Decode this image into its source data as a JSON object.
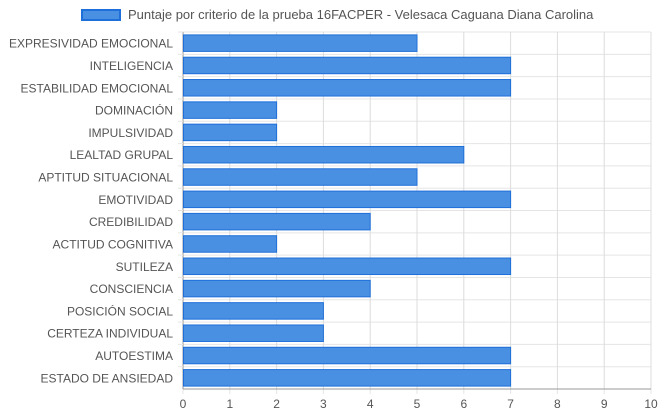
{
  "chart_data": {
    "type": "bar",
    "orientation": "horizontal",
    "categories": [
      "EXPRESIVIDAD EMOCIONAL",
      "INTELIGENCIA",
      "ESTABILIDAD EMOCIONAL",
      "DOMINACIÓN",
      "IMPULSIVIDAD",
      "LEALTAD GRUPAL",
      "APTITUD SITUACIONAL",
      "EMOTIVIDAD",
      "CREDIBILIDAD",
      "ACTITUD COGNITIVA",
      "SUTILEZA",
      "CONSCIENCIA",
      "POSICIÓN SOCIAL",
      "CERTEZA INDIVIDUAL",
      "AUTOESTIMA",
      "ESTADO DE ANSIEDAD"
    ],
    "series": [
      {
        "name": "Puntaje por criterio de la prueba 16FACPER - Velesaca Caguana Diana Carolina",
        "values": [
          5,
          7,
          7,
          2,
          2,
          6,
          5,
          7,
          4,
          2,
          7,
          4,
          3,
          3,
          7,
          7
        ],
        "color": "#4a90e2"
      }
    ],
    "xlim": [
      0,
      10
    ],
    "xticks": [
      "0",
      "1",
      "2",
      "3",
      "4",
      "5",
      "6",
      "7",
      "8",
      "9",
      "10"
    ],
    "grid": true,
    "legend_position": "top"
  },
  "colors": {
    "bar_fill": "#4a90e2",
    "bar_border": "#1e6fd9",
    "grid": "#e5e5e5",
    "axis": "#999999",
    "label": "#555555"
  }
}
